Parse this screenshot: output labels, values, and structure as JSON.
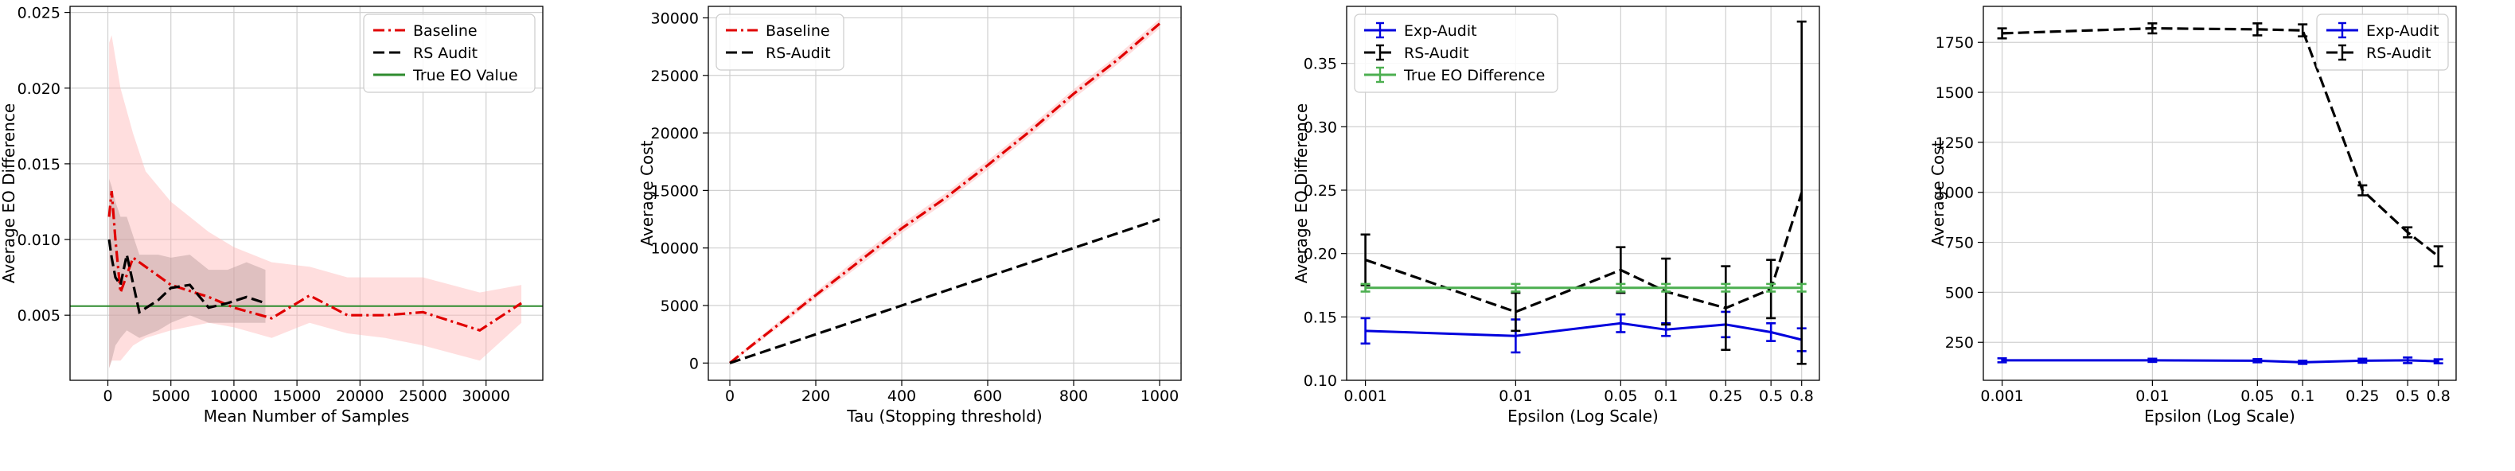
{
  "chart_data": [
    {
      "type": "line",
      "xlabel": "Mean Number of Samples",
      "ylabel": "Average EO Difference",
      "xlim": [
        -3000,
        34500
      ],
      "ylim": [
        0.0007,
        0.0254
      ],
      "xticks": [
        0,
        5000,
        10000,
        15000,
        20000,
        25000,
        30000
      ],
      "xtick_labels": [
        "0",
        "5000",
        "10000",
        "15000",
        "20000",
        "25000",
        "30000"
      ],
      "yticks": [
        0.005,
        0.01,
        0.015,
        0.02,
        0.025
      ],
      "ytick_labels": [
        "0.005",
        "0.010",
        "0.015",
        "0.020",
        "0.025"
      ],
      "grid": true,
      "legend_position": "top-right",
      "series": [
        {
          "name": "Baseline",
          "color": "#e00000",
          "dash": "dashdot",
          "band_color": "#ffb6b6",
          "x": [
            100,
            300,
            600,
            1000,
            2000,
            3000,
            5000,
            8000,
            10000,
            13000,
            16000,
            19000,
            22000,
            25000,
            29500,
            32800
          ],
          "y": [
            0.0115,
            0.0132,
            0.01,
            0.0065,
            0.0088,
            0.0082,
            0.007,
            0.0062,
            0.0055,
            0.0048,
            0.0063,
            0.005,
            0.005,
            0.0052,
            0.004,
            0.0058
          ],
          "lower": [
            0.0015,
            0.002,
            0.002,
            0.002,
            0.003,
            0.0035,
            0.004,
            0.0045,
            0.0042,
            0.0035,
            0.0045,
            0.0038,
            0.0035,
            0.003,
            0.002,
            0.0045
          ],
          "upper": [
            0.023,
            0.0235,
            0.022,
            0.02,
            0.017,
            0.0145,
            0.0125,
            0.0105,
            0.0095,
            0.0085,
            0.0082,
            0.0075,
            0.0075,
            0.0075,
            0.0065,
            0.007
          ]
        },
        {
          "name": "RS Audit",
          "color": "#000000",
          "dash": "dashed",
          "band_color": "#b89c9c",
          "x": [
            100,
            300,
            600,
            1000,
            1500,
            2500,
            4000,
            5000,
            6500,
            8000,
            9500,
            11000,
            12500
          ],
          "y": [
            0.01,
            0.0088,
            0.0075,
            0.007,
            0.009,
            0.0052,
            0.006,
            0.0068,
            0.007,
            0.0055,
            0.0058,
            0.0062,
            0.0058
          ],
          "lower": [
            0.0015,
            0.002,
            0.003,
            0.0035,
            0.004,
            0.0035,
            0.004,
            0.0045,
            0.005,
            0.0045,
            0.0045,
            0.0045,
            0.0045
          ],
          "upper": [
            0.014,
            0.0135,
            0.0125,
            0.0115,
            0.0115,
            0.009,
            0.009,
            0.0088,
            0.009,
            0.008,
            0.008,
            0.0085,
            0.008
          ]
        }
      ],
      "reference_lines": [
        {
          "name": "True EO Value",
          "color": "#2e8b2e",
          "y": 0.0056
        }
      ]
    },
    {
      "type": "line",
      "xlabel": "Tau (Stopping threshold)",
      "ylabel": "Average Cost",
      "xlim": [
        -50,
        1050
      ],
      "ylim": [
        -1500,
        31000
      ],
      "xticks": [
        0,
        200,
        400,
        600,
        800,
        1000
      ],
      "xtick_labels": [
        "0",
        "200",
        "400",
        "600",
        "800",
        "1000"
      ],
      "yticks": [
        0,
        5000,
        10000,
        15000,
        20000,
        25000,
        30000
      ],
      "ytick_labels": [
        "0",
        "5000",
        "10000",
        "15000",
        "20000",
        "25000",
        "30000"
      ],
      "grid": true,
      "legend_position": "top-left",
      "series": [
        {
          "name": "Baseline",
          "color": "#e00000",
          "dash": "dashdot",
          "band_color": "#ffb6b6",
          "x": [
            0,
            50,
            100,
            200,
            300,
            400,
            500,
            600,
            700,
            800,
            900,
            1000
          ],
          "y": [
            0,
            1500,
            2950,
            5900,
            8800,
            11700,
            14300,
            17200,
            20200,
            23400,
            26300,
            29500
          ],
          "lower": [
            0,
            1300,
            2700,
            5600,
            8400,
            11300,
            13900,
            16800,
            19800,
            23000,
            25900,
            29100
          ],
          "upper": [
            0,
            1700,
            3200,
            6200,
            9200,
            12100,
            14700,
            17600,
            20600,
            23800,
            26700,
            29900
          ]
        },
        {
          "name": "RS-Audit",
          "color": "#000000",
          "dash": "dashed",
          "x": [
            0,
            100,
            200,
            300,
            400,
            500,
            600,
            700,
            800,
            900,
            1000
          ],
          "y": [
            0,
            1250,
            2500,
            3750,
            5000,
            6250,
            7500,
            8750,
            10000,
            11250,
            12500
          ]
        }
      ]
    },
    {
      "type": "line",
      "xlabel": "Epsilon (Log Scale)",
      "ylabel": "Average EO Difference",
      "x_scale": "log",
      "xlim": [
        0.00075,
        1.05
      ],
      "ylim": [
        0.1,
        0.395
      ],
      "xticks": [
        0.001,
        0.01,
        0.05,
        0.1,
        0.25,
        0.5,
        0.8
      ],
      "xtick_labels": [
        "0.001",
        "0.01",
        "0.05",
        "0.1",
        "0.25",
        "0.5",
        "0.8"
      ],
      "yticks": [
        0.1,
        0.15,
        0.2,
        0.25,
        0.3,
        0.35
      ],
      "ytick_labels": [
        "0.10",
        "0.15",
        "0.20",
        "0.25",
        "0.30",
        "0.35"
      ],
      "grid": true,
      "legend_position": "top-left",
      "series": [
        {
          "name": "Exp-Audit",
          "color": "#0000dd",
          "dash": "solid",
          "x": [
            0.001,
            0.01,
            0.05,
            0.1,
            0.25,
            0.5,
            0.8
          ],
          "y": [
            0.139,
            0.135,
            0.145,
            0.14,
            0.144,
            0.138,
            0.132
          ],
          "err": [
            0.01,
            0.013,
            0.007,
            0.005,
            0.01,
            0.007,
            0.009
          ]
        },
        {
          "name": "RS-Audit",
          "color": "#000000",
          "dash": "dashed",
          "x": [
            0.001,
            0.01,
            0.05,
            0.1,
            0.25,
            0.5,
            0.8
          ],
          "y": [
            0.195,
            0.154,
            0.187,
            0.17,
            0.157,
            0.172,
            0.248
          ],
          "err": [
            0.02,
            0.015,
            0.018,
            0.026,
            0.033,
            0.023,
            0.135
          ]
        },
        {
          "name": "True EO Difference",
          "color": "#4caf50",
          "dash": "solid",
          "x": [
            0.001,
            0.01,
            0.05,
            0.1,
            0.25,
            0.5,
            0.8
          ],
          "y": [
            0.173,
            0.173,
            0.173,
            0.173,
            0.173,
            0.173,
            0.173
          ],
          "err": [
            0.003,
            0.003,
            0.003,
            0.003,
            0.003,
            0.003,
            0.003
          ]
        }
      ]
    },
    {
      "type": "line",
      "xlabel": "Epsilon (Log Scale)",
      "ylabel": "Average Cost",
      "x_scale": "log",
      "xlim": [
        0.00075,
        1.05
      ],
      "ylim": [
        60,
        1930
      ],
      "xticks": [
        0.001,
        0.01,
        0.05,
        0.1,
        0.25,
        0.5,
        0.8
      ],
      "xtick_labels": [
        "0.001",
        "0.01",
        "0.05",
        "0.1",
        "0.25",
        "0.5",
        "0.8"
      ],
      "yticks": [
        250,
        500,
        750,
        1000,
        1250,
        1500,
        1750
      ],
      "ytick_labels": [
        "250",
        "500",
        "750",
        "1000",
        "1250",
        "1500",
        "1750"
      ],
      "grid": true,
      "legend_position": "top-right",
      "series": [
        {
          "name": "Exp-Audit",
          "color": "#0000dd",
          "dash": "solid",
          "x": [
            0.001,
            0.01,
            0.05,
            0.1,
            0.25,
            0.5,
            0.8
          ],
          "y": [
            160,
            160,
            158,
            150,
            158,
            160,
            155
          ],
          "err": [
            10,
            8,
            8,
            8,
            10,
            14,
            10
          ]
        },
        {
          "name": "RS-Audit",
          "color": "#000000",
          "dash": "dashed",
          "x": [
            0.001,
            0.01,
            0.05,
            0.1,
            0.25,
            0.5,
            0.8
          ],
          "y": [
            1795,
            1820,
            1815,
            1810,
            1010,
            800,
            680
          ],
          "err": [
            25,
            25,
            30,
            30,
            25,
            25,
            50
          ]
        }
      ]
    }
  ]
}
